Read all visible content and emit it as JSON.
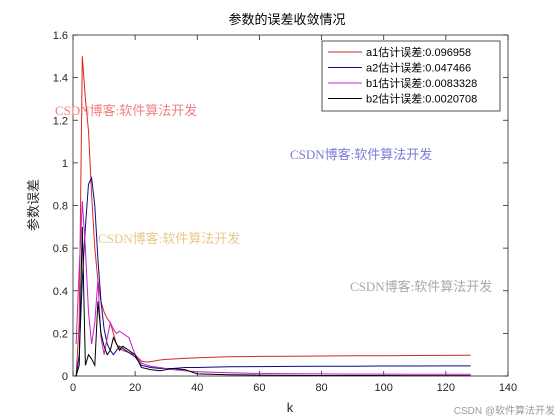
{
  "chart_data": {
    "type": "line",
    "title": "参数的误差收敛情况",
    "xlabel": "k",
    "ylabel": "参数误差",
    "xlim": [
      0,
      140
    ],
    "ylim": [
      0,
      1.6
    ],
    "xticks": [
      0,
      20,
      40,
      60,
      80,
      100,
      120,
      140
    ],
    "yticks": [
      0,
      0.2,
      0.4,
      0.6,
      0.8,
      1,
      1.2,
      1.4,
      1.6
    ],
    "legend_position": "top-right",
    "series": [
      {
        "name": "a1估计误差:0.096958",
        "color": "#d62728",
        "x": [
          1,
          2,
          3,
          4,
          5,
          6,
          7,
          8,
          9,
          10,
          11,
          12,
          13,
          14,
          15,
          16,
          18,
          20,
          22,
          24,
          26,
          28,
          30,
          35,
          40,
          45,
          50,
          60,
          70,
          80,
          90,
          100,
          110,
          120,
          128
        ],
        "y": [
          0,
          0.25,
          1.5,
          1.3,
          1.15,
          0.85,
          0.6,
          0.45,
          0.35,
          0.3,
          0.27,
          0.25,
          0.2,
          0.15,
          0.13,
          0.12,
          0.11,
          0.1,
          0.07,
          0.065,
          0.07,
          0.075,
          0.078,
          0.082,
          0.086,
          0.088,
          0.09,
          0.092,
          0.093,
          0.094,
          0.095,
          0.095,
          0.096,
          0.0965,
          0.097
        ]
      },
      {
        "name": "a2估计误差:0.047466",
        "color": "#0a0a8c",
        "x": [
          1,
          2,
          3,
          4,
          5,
          6,
          7,
          8,
          9,
          10,
          11,
          12,
          13,
          14,
          15,
          16,
          18,
          20,
          22,
          25,
          28,
          32,
          36,
          40,
          50,
          60,
          70,
          80,
          90,
          100,
          110,
          120,
          128
        ],
        "y": [
          0,
          0.1,
          0.45,
          0.7,
          0.9,
          0.93,
          0.8,
          0.55,
          0.35,
          0.22,
          0.15,
          0.12,
          0.1,
          0.12,
          0.14,
          0.13,
          0.11,
          0.09,
          0.05,
          0.04,
          0.035,
          0.035,
          0.04,
          0.04,
          0.043,
          0.044,
          0.045,
          0.046,
          0.046,
          0.047,
          0.047,
          0.0474,
          0.0475
        ]
      },
      {
        "name": "b1估计误差:0.0083328",
        "color": "#c81ec8",
        "x": [
          1,
          2,
          3,
          4,
          5,
          6,
          7,
          8,
          9,
          10,
          11,
          12,
          13,
          14,
          15,
          16,
          18,
          20,
          22,
          25,
          28,
          32,
          36,
          40,
          50,
          60,
          70,
          80,
          90,
          100,
          110,
          120,
          128
        ],
        "y": [
          0.15,
          0.5,
          0.82,
          0.6,
          0.3,
          0.15,
          0.25,
          0.45,
          0.18,
          0.1,
          0.18,
          0.25,
          0.22,
          0.2,
          0.21,
          0.2,
          0.18,
          0.1,
          0.06,
          0.045,
          0.04,
          0.03,
          0.025,
          0.02,
          0.015,
          0.012,
          0.011,
          0.01,
          0.009,
          0.009,
          0.0085,
          0.0084,
          0.0083
        ]
      },
      {
        "name": "b2估计误差:0.0020708",
        "color": "#000000",
        "x": [
          1,
          2,
          3,
          4,
          5,
          6,
          7,
          8,
          9,
          10,
          11,
          12,
          13,
          14,
          15,
          16,
          18,
          20,
          22,
          25,
          28,
          32,
          36,
          40,
          50,
          60,
          70,
          80,
          90,
          100,
          110,
          120,
          128
        ],
        "y": [
          0,
          0.05,
          0.7,
          0.05,
          0.1,
          0.08,
          0.05,
          0.35,
          0.2,
          0.14,
          0.1,
          0.12,
          0.18,
          0.15,
          0.12,
          0.14,
          0.12,
          0.1,
          0.04,
          0.03,
          0.025,
          0.035,
          0.03,
          0.01,
          0.006,
          0.004,
          0.003,
          0.0025,
          0.0023,
          0.0022,
          0.0021,
          0.0021,
          0.0021
        ]
      }
    ]
  },
  "watermarks": [
    {
      "text": "CSDN博客:软件算法开发",
      "color": "#f08080"
    },
    {
      "text": "CSDN博客:软件算法开发",
      "color": "#7b7bd8"
    },
    {
      "text": "CSDN博客:软件算法开发",
      "color": "#e8c98a"
    },
    {
      "text": "CSDN博客:软件算法开发",
      "color": "#a8a8a8"
    }
  ],
  "footer_watermark": "CSDN @软件算法开发"
}
